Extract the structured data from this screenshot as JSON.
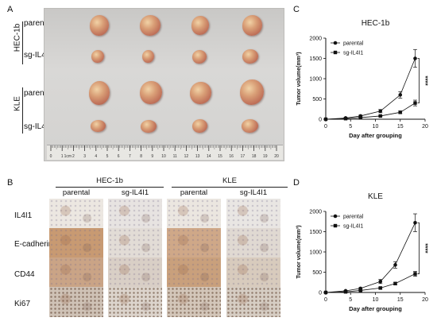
{
  "panels": {
    "a": "A",
    "b": "B",
    "c": "C",
    "d": "D"
  },
  "panel_a": {
    "group_hec": "HEC-1b",
    "group_kle": "KLE",
    "rows": [
      "parental",
      "sg-IL4I1",
      "parental",
      "sg-IL4I1"
    ],
    "ruler_unit": "1cm",
    "ruler_numbers": [
      "0",
      "1",
      "2",
      "3",
      "4",
      "5",
      "6",
      "7",
      "8",
      "9",
      "10",
      "11",
      "12",
      "13",
      "14",
      "15",
      "16",
      "17",
      "18",
      "19",
      "20"
    ]
  },
  "panel_b": {
    "group_hec": "HEC-1b",
    "group_kle": "KLE",
    "columns": [
      "parental",
      "sg-IL4I1",
      "parental",
      "sg-IL4I1"
    ],
    "rows": [
      "IL4I1",
      "E-cadherin",
      "CD44",
      "Ki67"
    ]
  },
  "chart_data": [
    {
      "type": "line",
      "title": "HEC-1b",
      "xlabel": "Day after grouping",
      "ylabel": "Tumor volume(mm³)",
      "xlim": [
        0,
        20
      ],
      "ylim": [
        0,
        2000
      ],
      "xticks": [
        0,
        5,
        10,
        15,
        20
      ],
      "yticks": [
        0,
        500,
        1000,
        1500,
        2000
      ],
      "significance": "****",
      "legend_position": "top-left",
      "series": [
        {
          "name": "parental",
          "marker": "circle",
          "x": [
            0,
            4,
            7,
            11,
            15,
            18
          ],
          "y": [
            0,
            30,
            80,
            200,
            600,
            1500
          ],
          "err": [
            0,
            10,
            20,
            40,
            80,
            220
          ]
        },
        {
          "name": "sg-IL4I1",
          "marker": "square",
          "x": [
            0,
            4,
            7,
            11,
            15,
            18
          ],
          "y": [
            0,
            15,
            40,
            80,
            170,
            400
          ],
          "err": [
            0,
            5,
            10,
            15,
            30,
            70
          ]
        }
      ]
    },
    {
      "type": "line",
      "title": "KLE",
      "xlabel": "Day after grouping",
      "ylabel": "Tumor volume(mm³)",
      "xlim": [
        0,
        20
      ],
      "ylim": [
        0,
        2000
      ],
      "xticks": [
        0,
        5,
        10,
        15,
        20
      ],
      "yticks": [
        0,
        500,
        1000,
        1500,
        2000
      ],
      "significance": "****",
      "legend_position": "top-left",
      "series": [
        {
          "name": "parental",
          "marker": "circle",
          "x": [
            0,
            4,
            7,
            11,
            14,
            18
          ],
          "y": [
            0,
            40,
            100,
            270,
            680,
            1720
          ],
          "err": [
            0,
            10,
            20,
            50,
            80,
            220
          ]
        },
        {
          "name": "sg-IL4I1",
          "marker": "square",
          "x": [
            0,
            4,
            7,
            11,
            14,
            18
          ],
          "y": [
            0,
            15,
            50,
            110,
            220,
            460
          ],
          "err": [
            0,
            5,
            10,
            20,
            30,
            60
          ]
        }
      ]
    }
  ]
}
